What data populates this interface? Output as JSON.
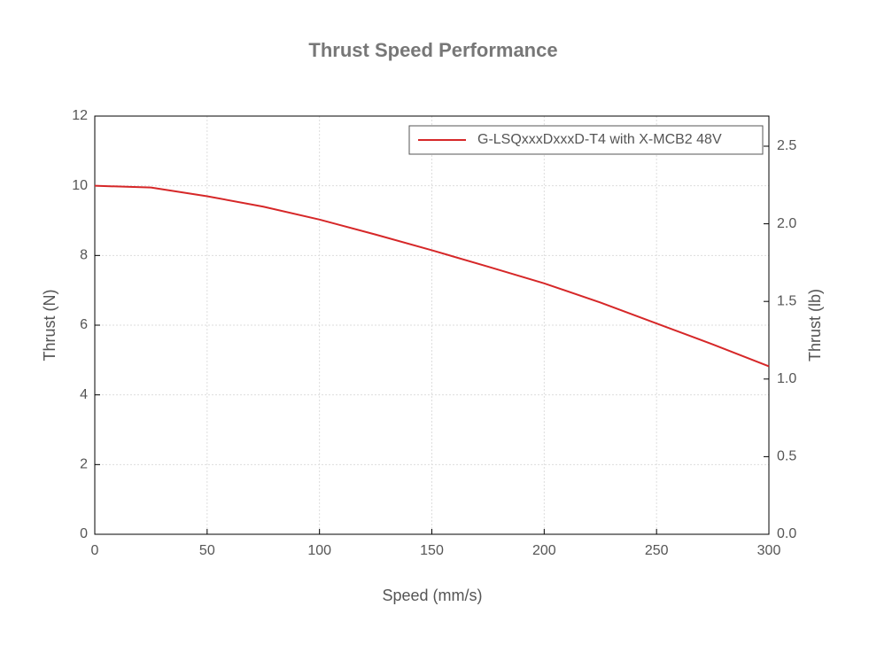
{
  "chart_data": {
    "type": "line",
    "title": "Thrust Speed Performance",
    "xlabel": "Speed (mm/s)",
    "ylabel": "Thrust (N)",
    "y2label": "Thrust (lb)",
    "x": [
      0,
      25,
      50,
      75,
      100,
      125,
      150,
      175,
      200,
      225,
      250,
      275,
      300
    ],
    "series": [
      {
        "name": "G-LSQxxxDxxxD-T4 with X-MCB2 48V",
        "color": "#d62728",
        "values": [
          10.0,
          9.95,
          9.7,
          9.4,
          9.03,
          8.6,
          8.15,
          7.68,
          7.2,
          6.65,
          6.05,
          5.45,
          4.82
        ]
      }
    ],
    "xlim": [
      0,
      300
    ],
    "xticks": [
      0,
      50,
      100,
      150,
      200,
      250,
      300
    ],
    "ylim": [
      0,
      12
    ],
    "yticks": [
      0,
      2,
      4,
      6,
      8,
      10,
      12
    ],
    "y2lim": [
      0,
      2.694
    ],
    "y2ticks": [
      {
        "value": 0,
        "label": "0.0"
      },
      0.5,
      {
        "value": 1,
        "label": "1.0"
      },
      1.5,
      {
        "value": 2,
        "label": "2.0"
      },
      2.5
    ],
    "grid": true,
    "legend": "upper right"
  }
}
